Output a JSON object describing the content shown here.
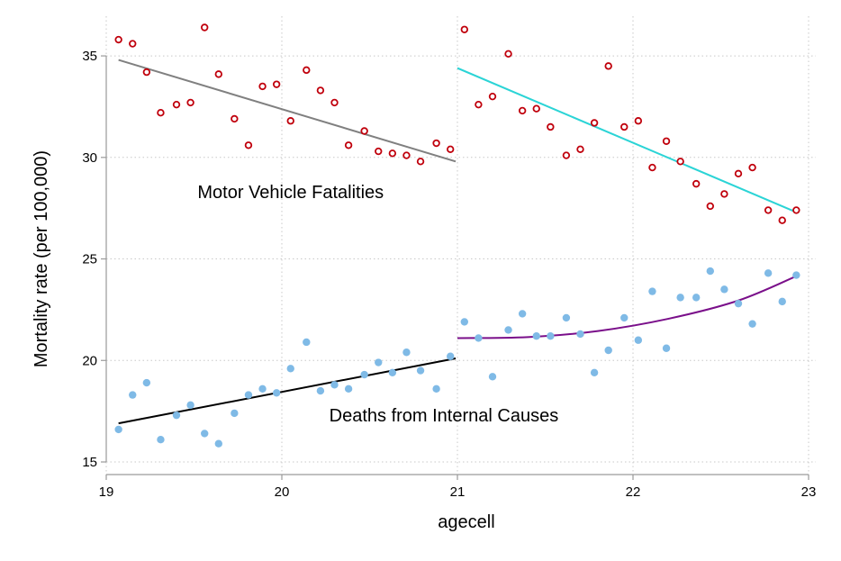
{
  "chart_data": {
    "type": "scatter",
    "xlabel": "agecell",
    "ylabel": "Mortality rate (per 100,000)",
    "xlim": [
      19,
      23
    ],
    "ylim": [
      15,
      36.6
    ],
    "xticks": [
      19,
      20,
      21,
      22,
      23
    ],
    "yticks": [
      15,
      20,
      25,
      30,
      35
    ],
    "grid": true,
    "legend": "none",
    "annotations": [
      {
        "text": "Motor Vehicle Fatalities",
        "x": 19.52,
        "y": 28.0
      },
      {
        "text": "Deaths from Internal Causes",
        "x": 20.27,
        "y": 17.0
      }
    ],
    "series": [
      {
        "marker": "hollow-circle",
        "color": "#c0000c",
        "x": [
          19.07,
          19.15,
          19.23,
          19.31,
          19.4,
          19.48,
          19.56,
          19.64,
          19.73,
          19.81,
          19.89,
          19.97,
          20.05,
          20.14,
          20.22,
          20.3,
          20.38,
          20.47,
          20.55,
          20.63,
          20.71,
          20.79,
          20.88,
          20.96,
          21.04,
          21.12,
          21.2,
          21.29,
          21.37,
          21.45,
          21.53,
          21.62,
          21.7,
          21.78,
          21.86,
          21.95,
          22.03,
          22.11,
          22.19,
          22.27,
          22.36,
          22.44,
          22.52,
          22.6,
          22.68,
          22.77,
          22.85,
          22.93
        ],
        "y": [
          35.8,
          35.6,
          34.2,
          32.2,
          32.6,
          32.7,
          36.4,
          34.1,
          31.9,
          30.6,
          33.5,
          33.6,
          31.8,
          34.3,
          33.3,
          32.7,
          30.6,
          31.3,
          30.3,
          30.2,
          30.1,
          29.8,
          30.7,
          30.4,
          36.3,
          32.6,
          33.0,
          35.1,
          32.3,
          32.4,
          31.5,
          30.1,
          30.4,
          31.7,
          34.5,
          31.5,
          31.8,
          29.5,
          30.8,
          29.8,
          28.7,
          27.6,
          28.2,
          29.2,
          29.5,
          27.4,
          26.9,
          27.4
        ]
      },
      {
        "marker": "filled-circle",
        "color": "#7fbae6",
        "x": [
          19.07,
          19.15,
          19.23,
          19.31,
          19.4,
          19.48,
          19.56,
          19.64,
          19.73,
          19.81,
          19.89,
          19.97,
          20.05,
          20.14,
          20.22,
          20.3,
          20.38,
          20.47,
          20.55,
          20.63,
          20.71,
          20.79,
          20.88,
          20.96,
          21.04,
          21.12,
          21.2,
          21.29,
          21.37,
          21.45,
          21.53,
          21.62,
          21.7,
          21.78,
          21.86,
          21.95,
          22.03,
          22.11,
          22.19,
          22.27,
          22.36,
          22.44,
          22.52,
          22.6,
          22.68,
          22.77,
          22.85,
          22.93
        ],
        "y": [
          16.6,
          18.3,
          18.9,
          16.1,
          17.3,
          17.8,
          16.4,
          15.9,
          17.4,
          18.3,
          18.6,
          18.4,
          19.6,
          20.9,
          18.5,
          18.8,
          18.6,
          19.3,
          19.9,
          19.4,
          20.4,
          19.5,
          18.6,
          20.2,
          21.9,
          21.1,
          19.2,
          21.5,
          22.3,
          21.2,
          21.2,
          22.1,
          21.3,
          19.4,
          20.5,
          22.1,
          21.0,
          23.4,
          20.6,
          23.1,
          23.1,
          24.4,
          23.5,
          22.8,
          21.8,
          24.3,
          22.9,
          24.2
        ]
      }
    ],
    "fit_lines": [
      {
        "color": "#808080",
        "x": [
          19.07,
          20.99
        ],
        "y": [
          34.8,
          29.8
        ]
      },
      {
        "color": "#2bd4d6",
        "x": [
          21.0,
          22.93
        ],
        "y": [
          34.4,
          27.3
        ]
      },
      {
        "color": "#000000",
        "x": [
          19.07,
          20.99
        ],
        "y": [
          16.9,
          20.1
        ]
      },
      {
        "color": "#7a0f8a",
        "x": [
          21.0,
          21.4,
          21.8,
          22.2,
          22.6,
          22.93
        ],
        "y": [
          21.1,
          21.15,
          21.45,
          22.05,
          22.95,
          24.15
        ],
        "curve": true
      }
    ]
  }
}
